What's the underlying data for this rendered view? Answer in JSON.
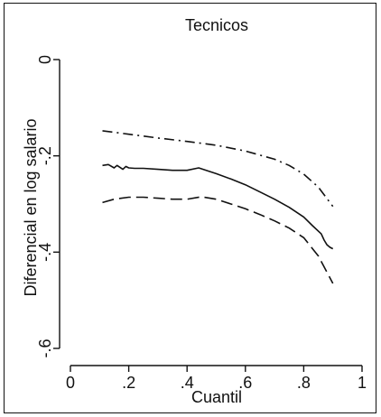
{
  "chart_data": {
    "type": "line",
    "title": "Tecnicos",
    "xlabel": "Cuantil",
    "ylabel": "Diferencial en log salario",
    "xlim": [
      0,
      1
    ],
    "ylim": [
      -0.6,
      0
    ],
    "x_ticks": [
      0,
      0.2,
      0.4,
      0.6,
      0.8,
      1
    ],
    "x_tick_labels": [
      "0",
      ".2",
      ".4",
      ".6",
      ".8",
      "1"
    ],
    "y_ticks": [
      0,
      -0.2,
      -0.4,
      -0.6
    ],
    "y_tick_labels": [
      "0",
      "-.2",
      "-.4",
      "-.6"
    ],
    "grid": false,
    "series": [
      {
        "role": "upper-bound",
        "style": "dash-dot",
        "x": [
          0.11,
          0.2,
          0.3,
          0.4,
          0.5,
          0.6,
          0.7,
          0.75,
          0.8,
          0.85,
          0.9
        ],
        "y": [
          -0.148,
          -0.155,
          -0.163,
          -0.17,
          -0.178,
          -0.19,
          -0.207,
          -0.22,
          -0.238,
          -0.265,
          -0.305
        ]
      },
      {
        "role": "estimate",
        "style": "solid",
        "x": [
          0.11,
          0.13,
          0.15,
          0.16,
          0.18,
          0.19,
          0.2,
          0.22,
          0.25,
          0.3,
          0.35,
          0.4,
          0.44,
          0.48,
          0.5,
          0.55,
          0.6,
          0.65,
          0.7,
          0.75,
          0.8,
          0.83,
          0.86,
          0.87,
          0.88,
          0.89,
          0.9
        ],
        "y": [
          -0.22,
          -0.218,
          -0.225,
          -0.22,
          -0.228,
          -0.222,
          -0.225,
          -0.226,
          -0.226,
          -0.228,
          -0.23,
          -0.23,
          -0.225,
          -0.233,
          -0.237,
          -0.248,
          -0.26,
          -0.275,
          -0.29,
          -0.307,
          -0.327,
          -0.345,
          -0.362,
          -0.375,
          -0.385,
          -0.39,
          -0.393
        ]
      },
      {
        "role": "lower-bound",
        "style": "dashed",
        "x": [
          0.11,
          0.15,
          0.2,
          0.25,
          0.3,
          0.35,
          0.4,
          0.45,
          0.5,
          0.55,
          0.6,
          0.65,
          0.7,
          0.75,
          0.8,
          0.85,
          0.9
        ],
        "y": [
          -0.297,
          -0.29,
          -0.286,
          -0.286,
          -0.288,
          -0.29,
          -0.29,
          -0.285,
          -0.29,
          -0.3,
          -0.31,
          -0.322,
          -0.335,
          -0.35,
          -0.37,
          -0.408,
          -0.465
        ]
      }
    ]
  }
}
